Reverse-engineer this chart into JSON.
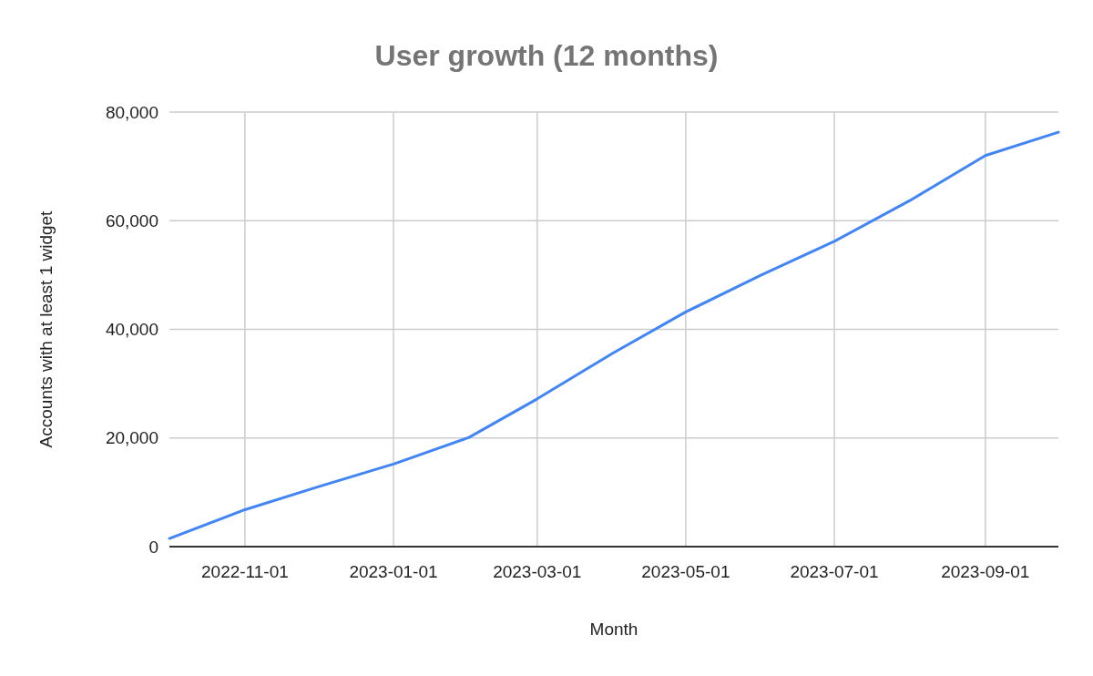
{
  "chart_data": {
    "type": "line",
    "title": "User growth (12 months)",
    "xlabel": "Month",
    "ylabel": "Accounts with at least 1 widget",
    "x": [
      "2022-10-01",
      "2022-11-01",
      "2022-12-01",
      "2023-01-01",
      "2023-02-01",
      "2023-03-01",
      "2023-04-01",
      "2023-05-01",
      "2023-06-01",
      "2023-07-01",
      "2023-08-01",
      "2023-09-01",
      "2023-10-01"
    ],
    "series": [
      {
        "color": "#4285f4",
        "values": [
          1500,
          6800,
          11000,
          15200,
          20100,
          27200,
          35600,
          43200,
          50000,
          56200,
          63700,
          72000,
          76300
        ]
      }
    ],
    "xlim": [
      "2022-10-01",
      "2023-10-01"
    ],
    "xticks": [
      {
        "value": "2022-11-01",
        "label": "2022-11-01"
      },
      {
        "value": "2023-01-01",
        "label": "2023-01-01"
      },
      {
        "value": "2023-03-01",
        "label": "2023-03-01"
      },
      {
        "value": "2023-05-01",
        "label": "2023-05-01"
      },
      {
        "value": "2023-07-01",
        "label": "2023-07-01"
      },
      {
        "value": "2023-09-01",
        "label": "2023-09-01"
      }
    ],
    "ylim": [
      0,
      80000
    ],
    "yticks": [
      {
        "value": 0,
        "label": "0"
      },
      {
        "value": 20000,
        "label": "20,000"
      },
      {
        "value": 40000,
        "label": "40,000"
      },
      {
        "value": 60000,
        "label": "60,000"
      },
      {
        "value": 80000,
        "label": "80,000"
      }
    ],
    "grid": true,
    "line_style": "solid",
    "marker": "none"
  }
}
